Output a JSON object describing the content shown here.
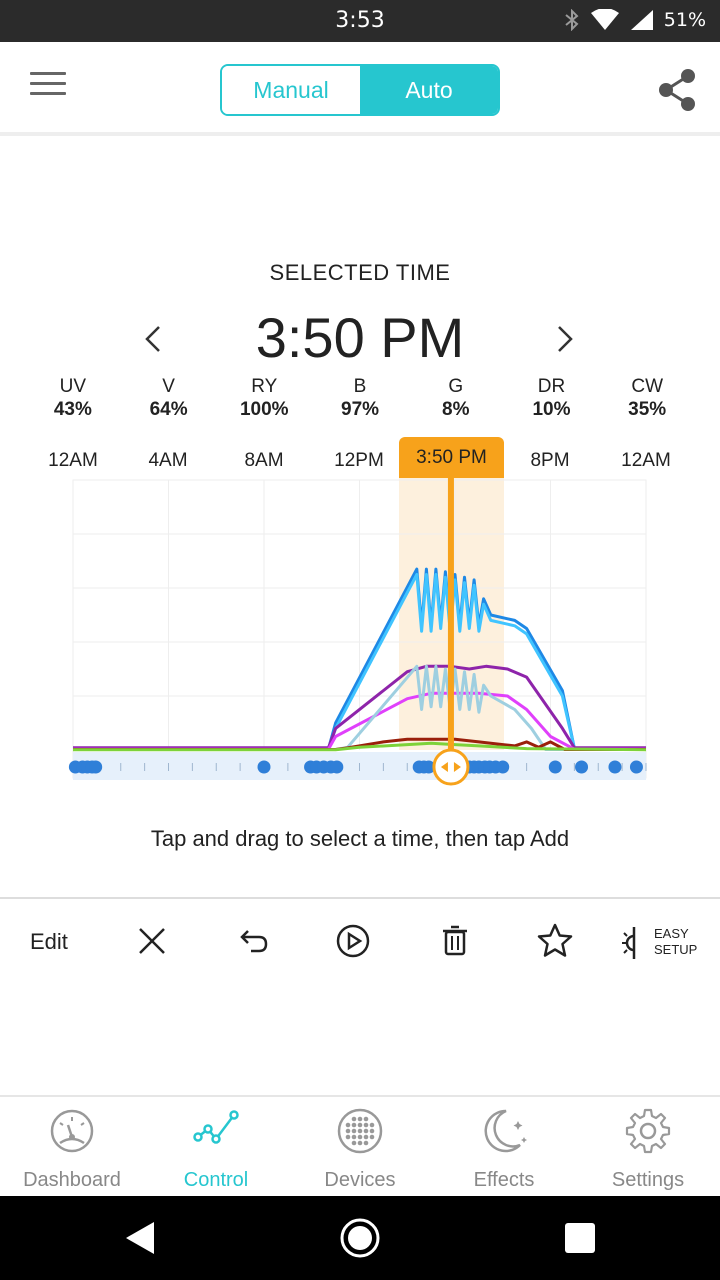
{
  "status_bar": {
    "time": "3:53",
    "battery": "51%"
  },
  "header": {
    "menu_icon": "hamburger-menu-icon",
    "mode_manual_label": "Manual",
    "mode_auto_label": "Auto",
    "active_mode": "Auto",
    "share_icon": "share-icon"
  },
  "selected_time": {
    "label": "SELECTED TIME",
    "value": "3:50 PM"
  },
  "channels": [
    {
      "name": "UV",
      "percent": "43%"
    },
    {
      "name": "V",
      "percent": "64%"
    },
    {
      "name": "RY",
      "percent": "100%"
    },
    {
      "name": "B",
      "percent": "97%"
    },
    {
      "name": "G",
      "percent": "8%"
    },
    {
      "name": "DR",
      "percent": "10%"
    },
    {
      "name": "CW",
      "percent": "35%"
    }
  ],
  "hour_labels": [
    "12AM",
    "4AM",
    "8AM",
    "12PM",
    "3:50 PM",
    "8PM",
    "12AM"
  ],
  "colors": {
    "accent": "#26c6cf",
    "selection": "#f7a21b",
    "point": "#2f7fd8"
  },
  "chart_data": {
    "type": "line",
    "x_unit": "hour",
    "xlim": [
      0,
      24
    ],
    "ylim": [
      0,
      100
    ],
    "selected_hour": 15.83,
    "series": [
      {
        "name": "B",
        "color": "#1e88e5",
        "points": [
          [
            0,
            0.5
          ],
          [
            10,
            0.5
          ],
          [
            10.7,
            0.5
          ],
          [
            11,
            10
          ],
          [
            14.4,
            67
          ],
          [
            14.6,
            46
          ],
          [
            14.8,
            67
          ],
          [
            15,
            46
          ],
          [
            15.2,
            67
          ],
          [
            15.4,
            47
          ],
          [
            15.6,
            66
          ],
          [
            15.8,
            46
          ],
          [
            16,
            65
          ],
          [
            16.2,
            46
          ],
          [
            16.4,
            64
          ],
          [
            16.6,
            47
          ],
          [
            16.8,
            63
          ],
          [
            17,
            46
          ],
          [
            17.2,
            56
          ],
          [
            17.5,
            50
          ],
          [
            18.5,
            48
          ],
          [
            19,
            45
          ],
          [
            20.5,
            22
          ],
          [
            21,
            0.5
          ],
          [
            24,
            0.5
          ]
        ]
      },
      {
        "name": "RY",
        "color": "#40c4ff",
        "points": [
          [
            0,
            0.5
          ],
          [
            10.7,
            0.5
          ],
          [
            11,
            8
          ],
          [
            14.4,
            65
          ],
          [
            14.6,
            44
          ],
          [
            14.8,
            65
          ],
          [
            15,
            44
          ],
          [
            15.2,
            65
          ],
          [
            15.4,
            45
          ],
          [
            15.6,
            64
          ],
          [
            15.8,
            44
          ],
          [
            16,
            63
          ],
          [
            16.2,
            44
          ],
          [
            16.4,
            62
          ],
          [
            16.6,
            45
          ],
          [
            16.8,
            61
          ],
          [
            17,
            44
          ],
          [
            17.2,
            54
          ],
          [
            17.5,
            48
          ],
          [
            18.5,
            46
          ],
          [
            19,
            43
          ],
          [
            20.5,
            20
          ],
          [
            21,
            0.5
          ],
          [
            24,
            0.5
          ]
        ]
      },
      {
        "name": "V",
        "color": "#8e24aa",
        "points": [
          [
            0,
            0.8
          ],
          [
            10.7,
            0.8
          ],
          [
            11,
            8
          ],
          [
            14,
            29
          ],
          [
            14.8,
            31
          ],
          [
            15.8,
            31
          ],
          [
            16.6,
            30
          ],
          [
            17.3,
            31
          ],
          [
            18.2,
            30
          ],
          [
            19,
            27
          ],
          [
            20.5,
            8
          ],
          [
            21,
            0.8
          ],
          [
            24,
            0.8
          ]
        ]
      },
      {
        "name": "UV",
        "color": "#e040fb",
        "points": [
          [
            0,
            0.3
          ],
          [
            10.7,
            0.3
          ],
          [
            11,
            5
          ],
          [
            14,
            19
          ],
          [
            15,
            21
          ],
          [
            16,
            21
          ],
          [
            17,
            21
          ],
          [
            18.2,
            20
          ],
          [
            19,
            15
          ],
          [
            20,
            5
          ],
          [
            21,
            0.3
          ],
          [
            24,
            0.3
          ]
        ]
      },
      {
        "name": "CW",
        "color": "#9ecfe0",
        "points": [
          [
            0,
            0.2
          ],
          [
            11,
            0.2
          ],
          [
            11.5,
            1
          ],
          [
            14.4,
            31
          ],
          [
            14.6,
            15
          ],
          [
            14.8,
            31
          ],
          [
            15,
            16
          ],
          [
            15.2,
            31
          ],
          [
            15.4,
            16
          ],
          [
            15.6,
            30
          ],
          [
            15.8,
            15
          ],
          [
            16,
            30
          ],
          [
            16.2,
            15
          ],
          [
            16.4,
            29
          ],
          [
            16.6,
            15
          ],
          [
            16.8,
            28
          ],
          [
            17,
            14
          ],
          [
            17.2,
            24
          ],
          [
            17.5,
            20
          ],
          [
            18.5,
            15
          ],
          [
            19.2,
            8
          ],
          [
            19.8,
            0.2
          ],
          [
            24,
            0.2
          ]
        ]
      },
      {
        "name": "DR",
        "color": "#9a1f0b",
        "points": [
          [
            0,
            0.2
          ],
          [
            11,
            0.2
          ],
          [
            11.5,
            0.8
          ],
          [
            13,
            3
          ],
          [
            14,
            4
          ],
          [
            15,
            4
          ],
          [
            16,
            4
          ],
          [
            17,
            3
          ],
          [
            18,
            2
          ],
          [
            18.5,
            1.5
          ],
          [
            19,
            3
          ],
          [
            19.5,
            1
          ],
          [
            20,
            3
          ],
          [
            20.6,
            0.2
          ],
          [
            24,
            0.2
          ]
        ]
      },
      {
        "name": "G",
        "color": "#7dd23a",
        "points": [
          [
            0,
            0.1
          ],
          [
            11,
            0.1
          ],
          [
            12,
            1
          ],
          [
            14,
            2
          ],
          [
            15,
            2.5
          ],
          [
            16,
            2
          ],
          [
            17,
            1.5
          ],
          [
            18,
            1
          ],
          [
            19,
            0.5
          ],
          [
            24,
            0.1
          ]
        ]
      }
    ],
    "schedule_points_hours": [
      0.1,
      0.4,
      0.6,
      0.8,
      0.95,
      8.0,
      9.95,
      10.2,
      10.5,
      10.8,
      11.05,
      14.5,
      14.7,
      14.9,
      16.6,
      16.8,
      17.0,
      17.25,
      17.45,
      17.7,
      18.0,
      20.2,
      21.3,
      22.7,
      23.6
    ]
  },
  "hint": "Tap and drag to select a time, then tap Add",
  "edit_toolbar": {
    "edit_label": "Edit",
    "easy_setup_line1": "EASY",
    "easy_setup_line2": "SETUP"
  },
  "bottom_nav": [
    {
      "label": "Dashboard",
      "icon": "dashboard-gauge-icon"
    },
    {
      "label": "Control",
      "icon": "control-graph-icon",
      "active": true
    },
    {
      "label": "Devices",
      "icon": "devices-dots-icon"
    },
    {
      "label": "Effects",
      "icon": "effects-moon-icon"
    },
    {
      "label": "Settings",
      "icon": "settings-gear-icon"
    }
  ]
}
